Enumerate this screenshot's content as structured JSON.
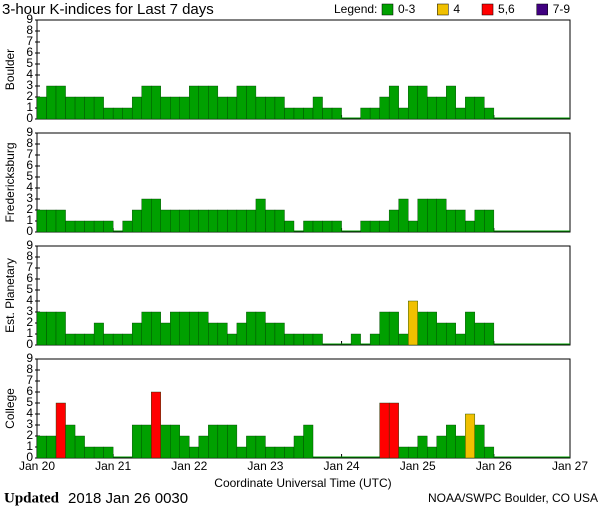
{
  "chart_data": {
    "type": "bar",
    "title": "3-hour K-indices for Last 7 days",
    "legend_title": "Legend:",
    "legend": [
      {
        "name": "0-3",
        "color": "#00a000"
      },
      {
        "name": "4",
        "color": "#f0c000"
      },
      {
        "name": "5,6",
        "color": "#ff0000"
      },
      {
        "name": "7-9",
        "color": "#400080"
      }
    ],
    "xlabel": "Coordinate Universal Time (UTC)",
    "xlim": [
      0,
      56
    ],
    "xticks": [
      {
        "value": 0,
        "label": "Jan 20"
      },
      {
        "value": 8,
        "label": "Jan 21"
      },
      {
        "value": 16,
        "label": "Jan 22"
      },
      {
        "value": 24,
        "label": "Jan 23"
      },
      {
        "value": 32,
        "label": "Jan 24"
      },
      {
        "value": 40,
        "label": "Jan 25"
      },
      {
        "value": 48,
        "label": "Jan 26"
      },
      {
        "value": 56,
        "label": "Jan 27"
      }
    ],
    "ylim": [
      0,
      9
    ],
    "yticks": [
      0,
      1,
      2,
      3,
      4,
      5,
      6,
      7,
      8,
      9
    ],
    "panels": [
      {
        "name": "Boulder",
        "values": [
          2,
          3,
          3,
          2,
          2,
          2,
          2,
          1,
          1,
          1,
          2,
          3,
          3,
          2,
          2,
          2,
          3,
          3,
          3,
          2,
          2,
          3,
          3,
          2,
          2,
          2,
          1,
          1,
          1,
          2,
          1,
          1,
          0,
          0,
          1,
          1,
          2,
          3,
          1,
          3,
          3,
          2,
          2,
          3,
          1,
          2,
          2,
          1
        ]
      },
      {
        "name": "Fredericksburg",
        "values": [
          2,
          2,
          2,
          1,
          1,
          1,
          1,
          1,
          0,
          1,
          2,
          3,
          3,
          2,
          2,
          2,
          2,
          2,
          2,
          2,
          2,
          2,
          2,
          3,
          2,
          2,
          1,
          0,
          1,
          1,
          1,
          1,
          0,
          0,
          1,
          1,
          1,
          2,
          3,
          1,
          3,
          3,
          3,
          2,
          2,
          1,
          2,
          2
        ]
      },
      {
        "name": "Est. Planetary",
        "values": [
          3,
          3,
          3,
          1,
          1,
          1,
          2,
          1,
          1,
          1,
          2,
          3,
          3,
          2,
          3,
          3,
          3,
          3,
          2,
          2,
          1,
          2,
          3,
          3,
          2,
          2,
          1,
          1,
          1,
          1,
          0,
          0,
          0,
          1,
          0,
          1,
          3,
          3,
          1,
          4,
          3,
          3,
          2,
          2,
          1,
          3,
          2,
          2
        ]
      },
      {
        "name": "College",
        "values": [
          2,
          2,
          5,
          3,
          2,
          1,
          1,
          1,
          0,
          0,
          3,
          3,
          6,
          3,
          3,
          2,
          1,
          2,
          3,
          3,
          3,
          1,
          2,
          2,
          1,
          1,
          1,
          2,
          3,
          0,
          0,
          0,
          0,
          0,
          0,
          0,
          5,
          5,
          1,
          1,
          2,
          1,
          2,
          3,
          2,
          4,
          3,
          1
        ]
      }
    ],
    "footer_bold": "Updated",
    "footer_date": "2018 Jan 26 0030",
    "footer_right": "NOAA/SWPC Boulder, CO USA"
  }
}
